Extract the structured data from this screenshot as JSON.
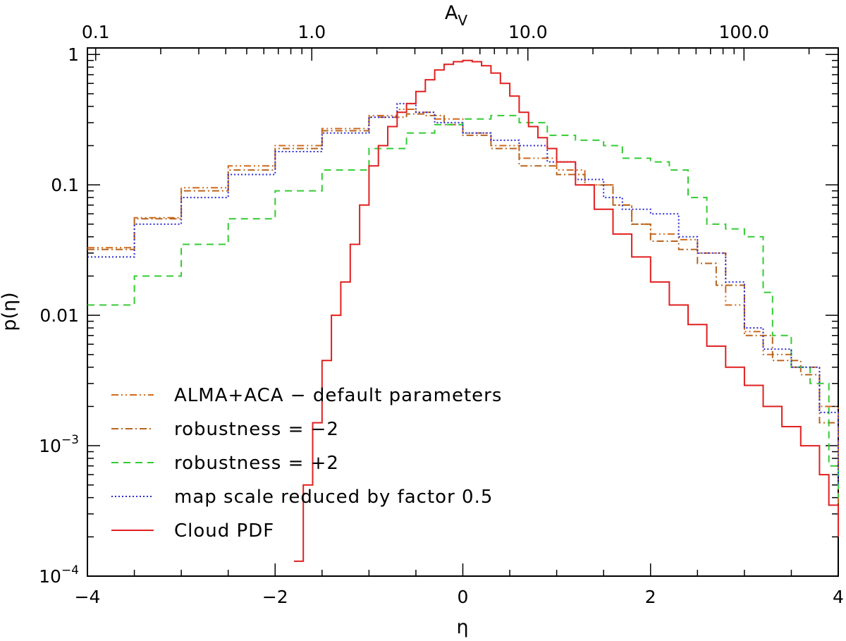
{
  "chart_data": {
    "type": "line",
    "step": true,
    "title": "",
    "xlabel": "η",
    "ylabel": "p(η)",
    "top_xlabel": "A",
    "top_xlabel_sub": "V",
    "xlim": [
      -4,
      4
    ],
    "ylim_log10": [
      -4,
      0.05
    ],
    "x_ticks": [
      {
        "value": -4,
        "label": "−4"
      },
      {
        "value": -2,
        "label": "−2"
      },
      {
        "value": 0,
        "label": "0"
      },
      {
        "value": 2,
        "label": "2"
      },
      {
        "value": 4,
        "label": "4"
      }
    ],
    "y_ticks": [
      {
        "value": 1,
        "label": "1",
        "exp": ""
      },
      {
        "value": 0.1,
        "label": "0.1",
        "exp": ""
      },
      {
        "value": 0.01,
        "label": "0.01",
        "exp": ""
      },
      {
        "value": 0.001,
        "label": "10",
        "exp": "−3"
      },
      {
        "value": 0.0001,
        "label": "10",
        "exp": "−4"
      }
    ],
    "top_ticks": [
      {
        "value": 0.1,
        "label": "0.1"
      },
      {
        "value": 1.0,
        "label": "1.0"
      },
      {
        "value": 10.0,
        "label": "10.0"
      },
      {
        "value": 100.0,
        "label": "100.0"
      }
    ],
    "top_axis_av_at_eta0": 5.0,
    "legend_position": "bottom-left",
    "series": [
      {
        "name": "ALMA+ACA − default parameters",
        "color": "#d2691e",
        "dash": "10,4,2,4,2,4",
        "points": [
          [
            -4.0,
            0.033
          ],
          [
            -3.5,
            0.056
          ],
          [
            -3.0,
            0.095
          ],
          [
            -2.5,
            0.14
          ],
          [
            -2.0,
            0.2
          ],
          [
            -1.5,
            0.27
          ],
          [
            -1.0,
            0.34
          ],
          [
            -0.7,
            0.38
          ],
          [
            -0.5,
            0.36
          ],
          [
            -0.3,
            0.32
          ],
          [
            0.0,
            0.25
          ],
          [
            0.3,
            0.2
          ],
          [
            0.6,
            0.16
          ],
          [
            1.0,
            0.13
          ],
          [
            1.3,
            0.1
          ],
          [
            1.6,
            0.07
          ],
          [
            1.8,
            0.05
          ],
          [
            2.0,
            0.042
          ],
          [
            2.3,
            0.038
          ],
          [
            2.5,
            0.03
          ],
          [
            2.8,
            0.012
          ],
          [
            3.0,
            0.0075
          ],
          [
            3.2,
            0.005
          ],
          [
            3.5,
            0.004
          ],
          [
            3.8,
            0.002
          ],
          [
            4.0,
            0.0006
          ]
        ]
      },
      {
        "name": "robustness = −2",
        "color": "#b8651e",
        "dash": "10,4,2,4",
        "points": [
          [
            -4.0,
            0.032
          ],
          [
            -3.5,
            0.055
          ],
          [
            -3.0,
            0.09
          ],
          [
            -2.5,
            0.13
          ],
          [
            -2.0,
            0.19
          ],
          [
            -1.5,
            0.26
          ],
          [
            -1.0,
            0.33
          ],
          [
            -0.6,
            0.35
          ],
          [
            -0.4,
            0.34
          ],
          [
            -0.2,
            0.29
          ],
          [
            0.0,
            0.24
          ],
          [
            0.3,
            0.19
          ],
          [
            0.6,
            0.14
          ],
          [
            1.0,
            0.12
          ],
          [
            1.3,
            0.1
          ],
          [
            1.6,
            0.07
          ],
          [
            1.8,
            0.05
          ],
          [
            2.0,
            0.037
          ],
          [
            2.3,
            0.032
          ],
          [
            2.5,
            0.025
          ],
          [
            2.7,
            0.017
          ],
          [
            3.0,
            0.007
          ],
          [
            3.3,
            0.0045
          ],
          [
            3.6,
            0.0035
          ],
          [
            3.8,
            0.0015
          ],
          [
            4.0,
            0.0003
          ]
        ]
      },
      {
        "name": "robustness = +2",
        "color": "#33cc33",
        "dash": "10,7",
        "points": [
          [
            -4.0,
            0.012
          ],
          [
            -3.5,
            0.02
          ],
          [
            -3.0,
            0.035
          ],
          [
            -2.5,
            0.055
          ],
          [
            -2.0,
            0.09
          ],
          [
            -1.5,
            0.13
          ],
          [
            -1.0,
            0.19
          ],
          [
            -0.6,
            0.25
          ],
          [
            -0.3,
            0.29
          ],
          [
            0.0,
            0.32
          ],
          [
            0.3,
            0.34
          ],
          [
            0.6,
            0.3
          ],
          [
            0.9,
            0.24
          ],
          [
            1.2,
            0.22
          ],
          [
            1.5,
            0.2
          ],
          [
            1.7,
            0.16
          ],
          [
            2.0,
            0.15
          ],
          [
            2.2,
            0.13
          ],
          [
            2.4,
            0.08
          ],
          [
            2.6,
            0.05
          ],
          [
            2.8,
            0.046
          ],
          [
            3.0,
            0.04
          ],
          [
            3.2,
            0.015
          ],
          [
            3.3,
            0.007
          ],
          [
            3.5,
            0.004
          ],
          [
            3.7,
            0.003
          ],
          [
            3.9,
            0.0007
          ],
          [
            4.0,
            0.0004
          ]
        ]
      },
      {
        "name": "map scale reduced by factor 0.5",
        "color": "#2b2bd6",
        "dash": "2,3",
        "points": [
          [
            -4.0,
            0.028
          ],
          [
            -3.5,
            0.05
          ],
          [
            -3.0,
            0.08
          ],
          [
            -2.5,
            0.12
          ],
          [
            -2.0,
            0.18
          ],
          [
            -1.5,
            0.25
          ],
          [
            -1.0,
            0.33
          ],
          [
            -0.7,
            0.42
          ],
          [
            -0.5,
            0.36
          ],
          [
            -0.3,
            0.3
          ],
          [
            0.0,
            0.25
          ],
          [
            0.3,
            0.22
          ],
          [
            0.6,
            0.2
          ],
          [
            0.9,
            0.15
          ],
          [
            1.2,
            0.11
          ],
          [
            1.5,
            0.08
          ],
          [
            1.7,
            0.065
          ],
          [
            2.0,
            0.06
          ],
          [
            2.3,
            0.04
          ],
          [
            2.5,
            0.03
          ],
          [
            2.8,
            0.018
          ],
          [
            3.0,
            0.008
          ],
          [
            3.2,
            0.0055
          ],
          [
            3.5,
            0.004
          ],
          [
            3.8,
            0.0018
          ],
          [
            4.0,
            0.0005
          ]
        ]
      },
      {
        "name": "Cloud PDF",
        "color": "#e11f1f",
        "dash": "",
        "points": [
          [
            -1.8,
            0.00013
          ],
          [
            -1.7,
            0.0005
          ],
          [
            -1.6,
            0.0015
          ],
          [
            -1.5,
            0.0045
          ],
          [
            -1.4,
            0.01
          ],
          [
            -1.3,
            0.018
          ],
          [
            -1.2,
            0.035
          ],
          [
            -1.1,
            0.07
          ],
          [
            -1.0,
            0.14
          ],
          [
            -0.9,
            0.2
          ],
          [
            -0.8,
            0.28
          ],
          [
            -0.7,
            0.36
          ],
          [
            -0.6,
            0.42
          ],
          [
            -0.5,
            0.52
          ],
          [
            -0.4,
            0.64
          ],
          [
            -0.3,
            0.76
          ],
          [
            -0.2,
            0.84
          ],
          [
            -0.1,
            0.88
          ],
          [
            0.0,
            0.9
          ],
          [
            0.1,
            0.88
          ],
          [
            0.2,
            0.82
          ],
          [
            0.3,
            0.72
          ],
          [
            0.4,
            0.6
          ],
          [
            0.5,
            0.48
          ],
          [
            0.6,
            0.36
          ],
          [
            0.7,
            0.28
          ],
          [
            0.8,
            0.23
          ],
          [
            0.9,
            0.19
          ],
          [
            1.0,
            0.15
          ],
          [
            1.2,
            0.1
          ],
          [
            1.4,
            0.065
          ],
          [
            1.6,
            0.042
          ],
          [
            1.8,
            0.028
          ],
          [
            2.0,
            0.018
          ],
          [
            2.2,
            0.012
          ],
          [
            2.4,
            0.0085
          ],
          [
            2.6,
            0.0058
          ],
          [
            2.8,
            0.004
          ],
          [
            3.0,
            0.0029
          ],
          [
            3.2,
            0.002
          ],
          [
            3.4,
            0.0014
          ],
          [
            3.6,
            0.001
          ],
          [
            3.8,
            0.0006
          ],
          [
            3.9,
            0.00035
          ],
          [
            4.0,
            0.0002
          ]
        ]
      }
    ]
  }
}
